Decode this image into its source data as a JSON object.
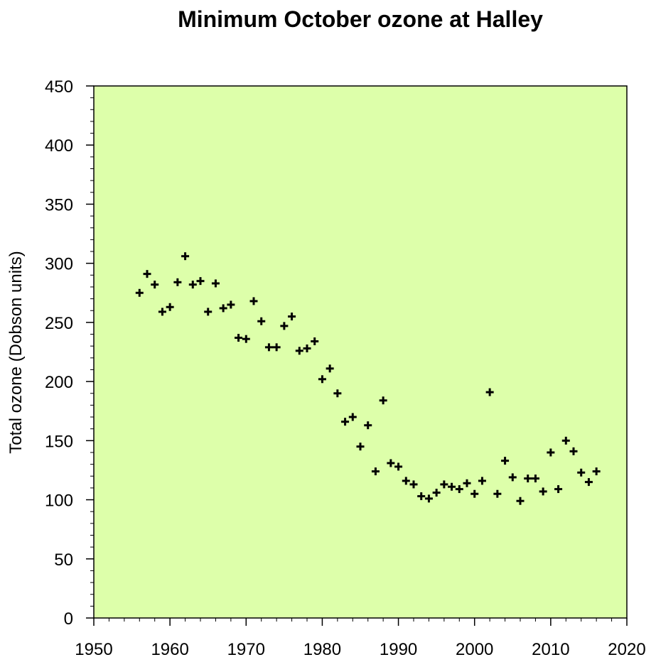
{
  "chart_data": {
    "type": "scatter",
    "title": "Minimum October ozone at Halley",
    "xlabel": "",
    "ylabel": "Total ozone (Dobson units)",
    "xlim": [
      1950,
      2020
    ],
    "ylim": [
      0,
      450
    ],
    "xticks": [
      1950,
      1960,
      1970,
      1980,
      1990,
      2000,
      2010,
      2020
    ],
    "yticks": [
      0,
      50,
      100,
      150,
      200,
      250,
      300,
      350,
      400,
      450
    ],
    "marker": "plus",
    "plot_background": "#ddffaa",
    "grid": false,
    "series": [
      {
        "x": [
          1956,
          1957,
          1958,
          1959,
          1960,
          1961,
          1962,
          1963,
          1964,
          1965,
          1966,
          1967,
          1968,
          1969,
          1970,
          1971,
          1972,
          1973,
          1974,
          1975,
          1976,
          1977,
          1978,
          1979,
          1980,
          1981,
          1982,
          1983,
          1984,
          1985,
          1986,
          1987,
          1988,
          1989,
          1990,
          1991,
          1992,
          1993,
          1994,
          1995,
          1996,
          1997,
          1998,
          1999,
          2000,
          2001,
          2002,
          2003,
          2004,
          2005,
          2006,
          2007,
          2008,
          2009,
          2010,
          2011,
          2012,
          2013,
          2014,
          2015,
          2016
        ],
        "values": [
          275,
          291,
          282,
          259,
          263,
          284,
          306,
          282,
          285,
          259,
          283,
          262,
          265,
          237,
          236,
          268,
          251,
          229,
          229,
          247,
          255,
          226,
          228,
          234,
          202,
          211,
          190,
          166,
          170,
          145,
          163,
          124,
          184,
          131,
          128,
          116,
          113,
          103,
          101,
          106,
          113,
          111,
          109,
          114,
          105,
          116,
          191,
          105,
          133,
          119,
          99,
          118,
          118,
          107,
          140,
          109,
          150,
          141,
          123,
          115,
          124
        ]
      }
    ]
  }
}
